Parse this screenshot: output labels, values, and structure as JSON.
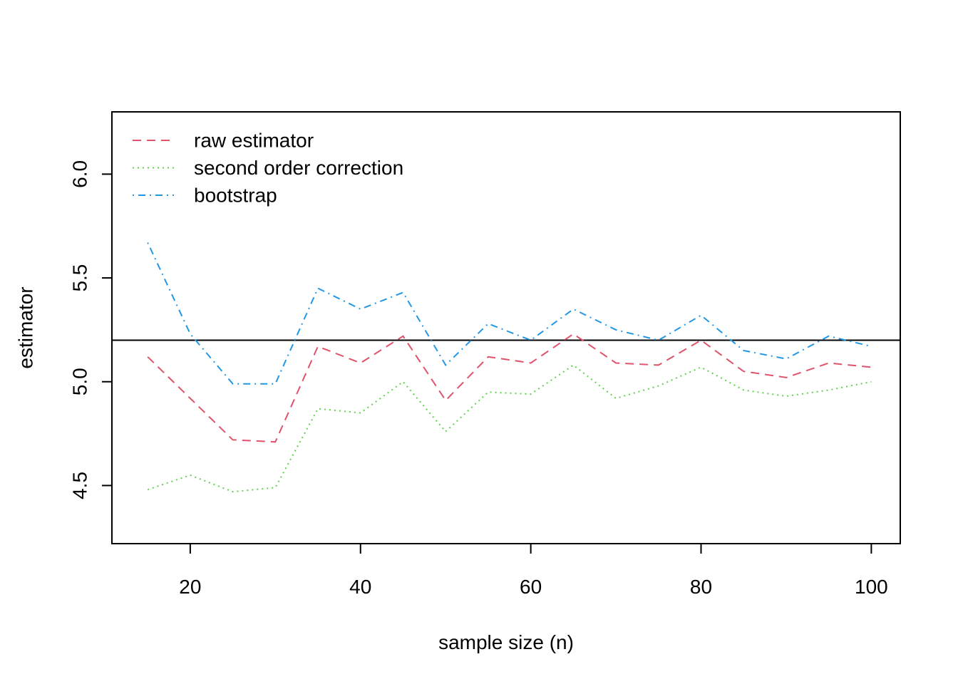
{
  "chart_data": {
    "type": "line",
    "title": "",
    "xlabel": "sample size (n)",
    "ylabel": "estimator",
    "xlim": [
      10.8,
      103.4
    ],
    "ylim": [
      4.22,
      6.3
    ],
    "x_ticks": [
      20,
      40,
      60,
      80,
      100
    ],
    "x_tick_labels": [
      "20",
      "40",
      "60",
      "80",
      "100"
    ],
    "y_ticks": [
      4.5,
      5.0,
      5.5,
      6.0
    ],
    "y_tick_labels": [
      "4.5",
      "5.0",
      "5.5",
      "6.0"
    ],
    "grid": false,
    "legend_position": "top-left",
    "x": [
      15,
      20,
      25,
      30,
      35,
      40,
      45,
      50,
      55,
      60,
      65,
      70,
      75,
      80,
      85,
      90,
      95,
      100
    ],
    "reference_line": {
      "y": 5.2,
      "color": "#000000"
    },
    "series": [
      {
        "name": "raw estimator",
        "color": "#DF536B",
        "dash": "dashed",
        "values": [
          5.12,
          4.92,
          4.72,
          4.71,
          5.17,
          5.09,
          5.22,
          4.91,
          5.12,
          5.09,
          5.23,
          5.09,
          5.08,
          5.2,
          5.05,
          5.02,
          5.09,
          5.07
        ]
      },
      {
        "name": "second order correction",
        "color": "#61D04F",
        "dash": "dotted",
        "values": [
          4.48,
          4.55,
          4.47,
          4.49,
          4.87,
          4.85,
          5.0,
          4.76,
          4.95,
          4.94,
          5.08,
          4.92,
          4.98,
          5.07,
          4.96,
          4.93,
          4.96,
          5.0
        ]
      },
      {
        "name": "bootstrap",
        "color": "#2297E6",
        "dash": "dotdash",
        "values": [
          5.67,
          5.23,
          4.99,
          4.99,
          5.45,
          5.35,
          5.43,
          5.08,
          5.28,
          5.2,
          5.35,
          5.25,
          5.2,
          5.32,
          5.15,
          5.11,
          5.22,
          5.17
        ]
      }
    ]
  }
}
